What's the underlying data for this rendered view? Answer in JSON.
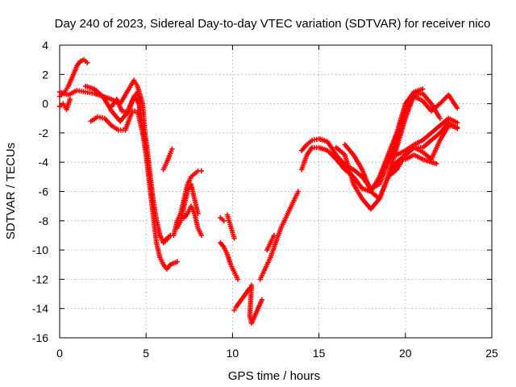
{
  "chart_data": {
    "type": "scatter",
    "title": "Day 240 of 2023, Sidereal Day-to-day VTEC variation (SDTVAR) for receiver nico",
    "xlabel": "GPS time / hours",
    "ylabel": "SDTVAR / TECUs",
    "xlim": [
      0,
      25
    ],
    "ylim": [
      -16,
      4
    ],
    "xticks": [
      0,
      5,
      10,
      15,
      20,
      25
    ],
    "yticks": [
      -16,
      -14,
      -12,
      -10,
      -8,
      -6,
      -4,
      -2,
      0,
      2,
      4
    ],
    "grid": true,
    "marker": "+",
    "color": "#ff0000",
    "series": [
      {
        "name": "s1",
        "x": [
          0,
          0.3,
          0.5,
          0.8,
          1.0,
          1.2,
          1.4,
          1.6
        ],
        "y": [
          0.5,
          0.8,
          1.2,
          2.0,
          2.6,
          2.9,
          3.0,
          2.8
        ]
      },
      {
        "name": "s2",
        "x": [
          0,
          0.5,
          1.0,
          1.5,
          2.0,
          2.5,
          3.0,
          3.5,
          4.0,
          4.3,
          4.5,
          4.8,
          5.0,
          5.2,
          5.4,
          5.6,
          5.8,
          6.0,
          6.2,
          6.4
        ],
        "y": [
          0.8,
          0.6,
          0.9,
          0.8,
          0.7,
          0.5,
          0.3,
          0.0,
          1.0,
          1.6,
          1.2,
          0.0,
          -3.0,
          -5.0,
          -7.0,
          -8.0,
          -9.0,
          -9.5,
          -9.3,
          -9.0
        ]
      },
      {
        "name": "s3",
        "x": [
          0,
          0.2,
          0.4,
          0.6
        ],
        "y": [
          -0.2,
          0.0,
          -0.4,
          0.3
        ]
      },
      {
        "name": "s4",
        "x": [
          1.5,
          2.0,
          2.5,
          3.0,
          3.5,
          4.0,
          4.3,
          4.6,
          4.8,
          5.0,
          5.2,
          5.4,
          5.6,
          5.8,
          6.0,
          6.2,
          6.4
        ],
        "y": [
          1.2,
          1.0,
          0.5,
          -0.5,
          -1.2,
          -0.5,
          0.5,
          0.0,
          -1.5,
          -2.5,
          -4.5,
          -6.5,
          -8.0,
          -9.0,
          -9.5,
          -9.2,
          -9.0
        ]
      },
      {
        "name": "s5",
        "x": [
          1.8,
          2.2,
          2.6,
          3.0,
          3.4,
          3.8,
          4.2,
          4.5,
          4.8,
          5.0,
          5.2,
          5.4,
          5.6,
          5.8,
          6.0,
          6.2,
          6.4,
          6.8
        ],
        "y": [
          -1.2,
          -0.9,
          -1.0,
          -1.5,
          -1.8,
          -1.8,
          -0.5,
          -0.5,
          -2.0,
          -3.5,
          -5.5,
          -7.5,
          -9.5,
          -10.5,
          -11.0,
          -11.3,
          -11.0,
          -10.8
        ]
      },
      {
        "name": "s6",
        "x": [
          3.0,
          3.3,
          3.6,
          3.9,
          4.2,
          4.5,
          4.7,
          4.9
        ],
        "y": [
          -0.2,
          0.3,
          -0.5,
          -0.6,
          0.2,
          0.8,
          -1.0,
          -2.5
        ]
      },
      {
        "name": "s7",
        "x": [
          6.0,
          6.2,
          6.4,
          6.5
        ],
        "y": [
          -4.5,
          -4.0,
          -3.4,
          -3.1
        ]
      },
      {
        "name": "s8",
        "x": [
          6.6,
          6.8,
          7.0,
          7.2,
          7.4,
          7.6,
          7.8,
          8.0,
          8.2
        ],
        "y": [
          -9.0,
          -8.0,
          -7.5,
          -6.5,
          -5.5,
          -5.0,
          -4.8,
          -4.6,
          -4.6
        ]
      },
      {
        "name": "s9",
        "x": [
          6.8,
          7.0,
          7.2,
          7.4,
          7.6,
          7.8,
          8.0
        ],
        "y": [
          -8.5,
          -8.0,
          -7.0,
          -6.0,
          -5.5,
          -6.5,
          -7.5
        ]
      },
      {
        "name": "s10",
        "x": [
          7.2,
          7.4,
          7.6,
          7.8,
          8.0,
          8.2
        ],
        "y": [
          -7.8,
          -7.5,
          -7.0,
          -7.5,
          -8.5,
          -9.0
        ]
      },
      {
        "name": "s11",
        "x": [
          9.3,
          9.5
        ],
        "y": [
          -7.8,
          -8.0
        ]
      },
      {
        "name": "s12",
        "x": [
          9.7,
          9.8,
          9.9,
          10.0,
          10.1
        ],
        "y": [
          -7.6,
          -8.0,
          -8.4,
          -8.8,
          -9.2
        ]
      },
      {
        "name": "s13",
        "x": [
          9.3,
          9.5,
          9.7,
          9.9,
          10.1,
          10.3
        ],
        "y": [
          -9.5,
          -9.8,
          -10.3,
          -11.0,
          -11.5,
          -12.0
        ]
      },
      {
        "name": "s14",
        "x": [
          10.1,
          10.2,
          11.0,
          11.1,
          11.0,
          11.1,
          11.7
        ],
        "y": [
          -14.1,
          -13.9,
          -12.6,
          -12.4,
          -14.5,
          -15.0,
          -13.4
        ]
      },
      {
        "name": "s15",
        "x": [
          11.6,
          11.8,
          12.0,
          12.2,
          12.5,
          12.8,
          13.0,
          13.2,
          13.4,
          13.6,
          13.8
        ],
        "y": [
          -12.0,
          -11.5,
          -11.0,
          -10.5,
          -9.5,
          -8.5,
          -8.0,
          -7.5,
          -7.0,
          -6.5,
          -6.0
        ]
      },
      {
        "name": "s16",
        "x": [
          12.0,
          12.2,
          12.4
        ],
        "y": [
          -10.0,
          -9.5,
          -9.0
        ]
      },
      {
        "name": "s17",
        "x": [
          14.0,
          14.3,
          14.6,
          15.0,
          15.5,
          16.0,
          16.5,
          17.0,
          17.5,
          18.0,
          18.5,
          19.0,
          19.5,
          20.0,
          20.5,
          21.0
        ],
        "y": [
          -4.5,
          -3.5,
          -3.0,
          -3.0,
          -3.2,
          -3.8,
          -4.5,
          -5.0,
          -5.8,
          -6.0,
          -5.0,
          -3.5,
          -2.0,
          0.0,
          0.8,
          1.0
        ]
      },
      {
        "name": "s18",
        "x": [
          14.0,
          14.3,
          14.6,
          15.0,
          15.5,
          16.0,
          16.5,
          17.0,
          17.5,
          18.0,
          18.5,
          19.0,
          19.5,
          20.0,
          20.5,
          21.0,
          21.5,
          22.0,
          22.5,
          23.0
        ],
        "y": [
          -3.2,
          -2.8,
          -2.5,
          -2.4,
          -2.6,
          -3.5,
          -4.2,
          -4.5,
          -5.0,
          -5.8,
          -5.5,
          -4.0,
          -2.5,
          -0.5,
          0.5,
          0.2,
          -0.5,
          0.0,
          0.6,
          -0.3
        ]
      },
      {
        "name": "s19",
        "x": [
          16.0,
          16.5,
          17.0,
          17.5,
          18.0,
          18.5,
          19.0,
          19.5,
          20.0,
          20.5,
          21.0,
          21.5,
          22.0
        ],
        "y": [
          -3.0,
          -3.5,
          -5.5,
          -6.5,
          -7.2,
          -6.5,
          -5.0,
          -3.0,
          -1.0,
          0.6,
          0.7,
          0.0,
          -1.0
        ]
      },
      {
        "name": "s20",
        "x": [
          16.5,
          17.0,
          17.5,
          18.0,
          18.5,
          19.0,
          19.5,
          20.0,
          20.5,
          21.0,
          21.5,
          22.0,
          22.5,
          23.0
        ],
        "y": [
          -2.8,
          -3.5,
          -4.5,
          -6.0,
          -6.5,
          -5.0,
          -4.0,
          -3.5,
          -3.0,
          -3.3,
          -3.8,
          -2.5,
          -1.5,
          -1.6
        ]
      },
      {
        "name": "s21",
        "x": [
          19.0,
          19.5,
          20.0,
          20.5,
          21.0,
          21.5,
          22.0,
          22.5,
          23.0
        ],
        "y": [
          -5.0,
          -4.5,
          -3.5,
          -3.0,
          -3.0,
          -2.5,
          -2.0,
          -1.3,
          -1.7
        ]
      },
      {
        "name": "s22",
        "x": [
          19.5,
          20.0,
          20.5,
          21.0,
          21.5,
          22.0,
          22.5,
          23.0
        ],
        "y": [
          -3.5,
          -3.2,
          -2.8,
          -2.5,
          -2.0,
          -1.5,
          -1.0,
          -1.3
        ]
      },
      {
        "name": "s23",
        "x": [
          20.0,
          20.5,
          21.0,
          21.5,
          21.8
        ],
        "y": [
          -3.8,
          -3.5,
          -3.8,
          -4.0,
          -4.1
        ]
      }
    ]
  }
}
